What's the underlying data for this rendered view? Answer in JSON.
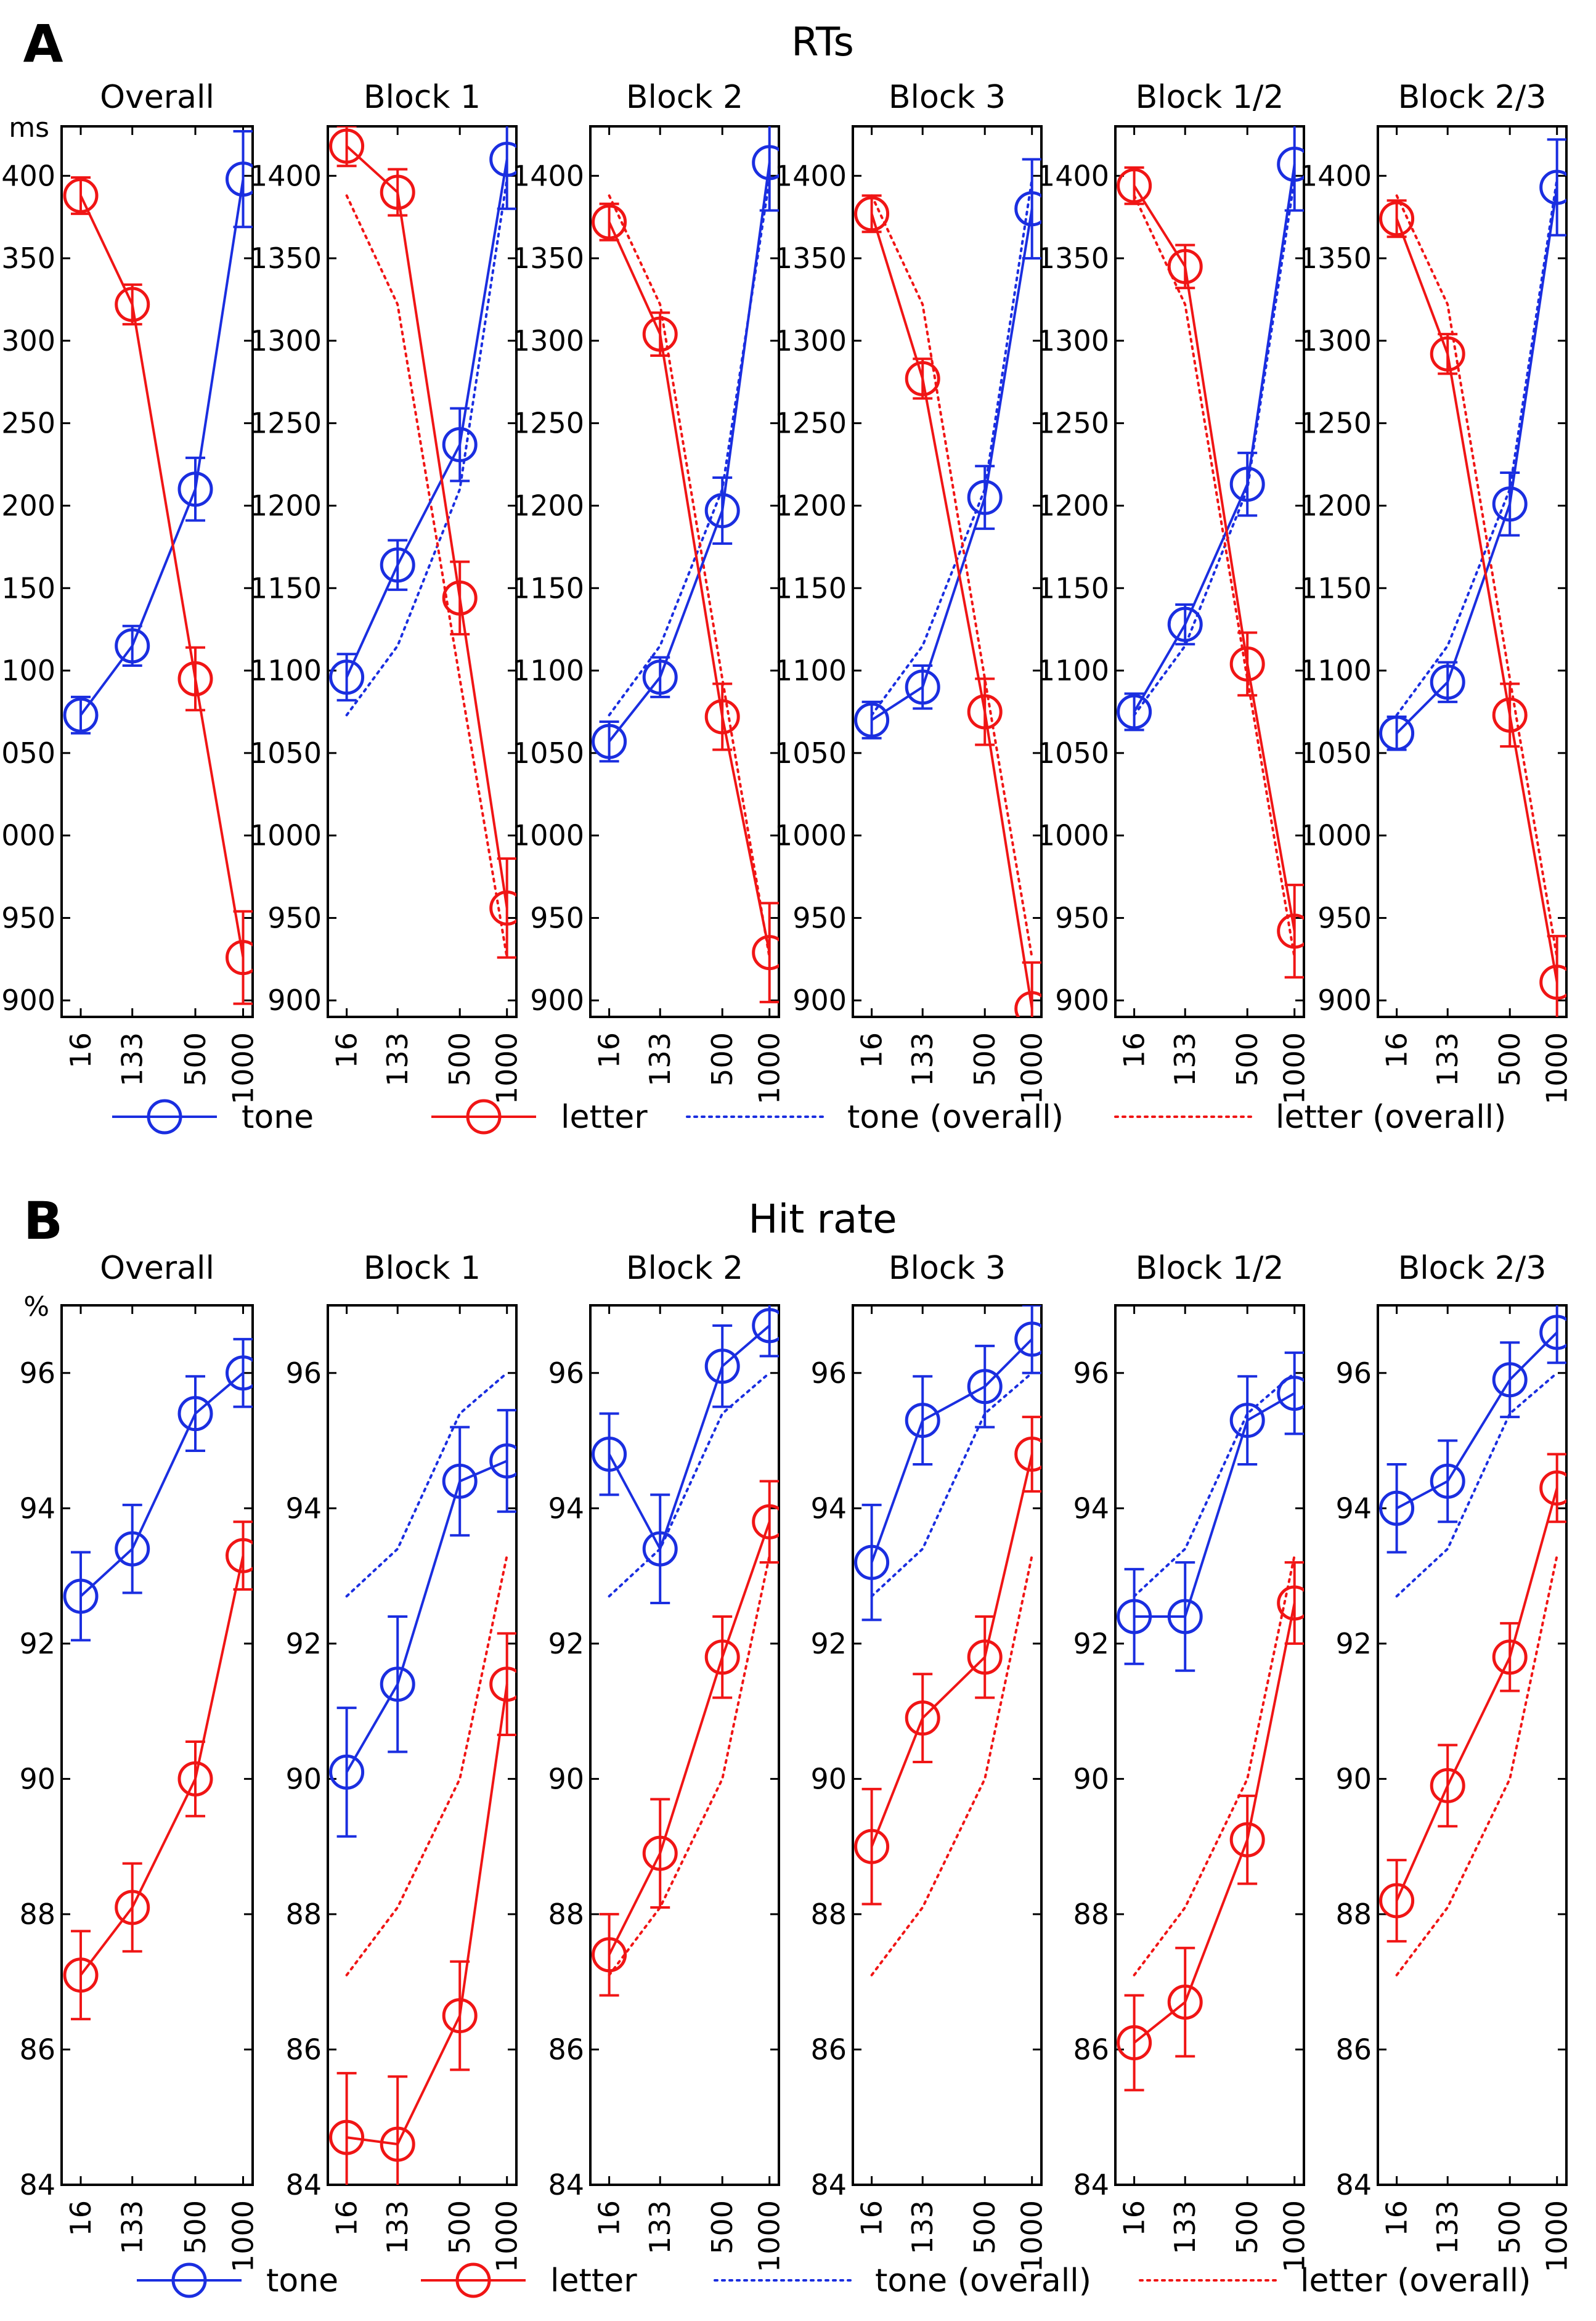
{
  "colors": {
    "tone": "#1a2ee0",
    "letter": "#f01515"
  },
  "legend": [
    {
      "key": "tone",
      "label": "tone",
      "style": "marker"
    },
    {
      "key": "letter",
      "label": "letter",
      "style": "marker"
    },
    {
      "key": "tone_overall",
      "label": "tone (overall)",
      "style": "dotted",
      "color_key": "tone"
    },
    {
      "key": "letter_overall",
      "label": "letter (overall)",
      "style": "dotted",
      "color_key": "letter"
    }
  ],
  "chart_data": [
    {
      "id": "A",
      "type": "line",
      "letter": "A",
      "title": "RTs",
      "unit": "ms",
      "ylim": [
        890,
        1430
      ],
      "yticks": [
        900,
        950,
        1000,
        1050,
        1100,
        1150,
        1200,
        1250,
        1300,
        1350,
        1400
      ],
      "categories": [
        "16",
        "133",
        "500",
        "1000"
      ],
      "overall": {
        "tone": [
          1073,
          1115,
          1210,
          1398
        ],
        "letter": [
          1388,
          1322,
          1095,
          926
        ]
      },
      "panels": [
        {
          "title": "Overall",
          "show_overall": false,
          "series": [
            {
              "name": "tone",
              "values": [
                1073,
                1115,
                1210,
                1398
              ],
              "errors": [
                11,
                12,
                19,
                29
              ]
            },
            {
              "name": "letter",
              "values": [
                1388,
                1322,
                1095,
                926
              ],
              "errors": [
                11,
                12,
                19,
                28
              ]
            }
          ]
        },
        {
          "title": "Block 1",
          "show_overall": true,
          "series": [
            {
              "name": "tone",
              "values": [
                1096,
                1164,
                1237,
                1410
              ],
              "errors": [
                14,
                15,
                22,
                30
              ]
            },
            {
              "name": "letter",
              "values": [
                1418,
                1390,
                1144,
                956
              ],
              "errors": [
                12,
                14,
                22,
                30
              ]
            }
          ]
        },
        {
          "title": "Block 2",
          "show_overall": true,
          "series": [
            {
              "name": "tone",
              "values": [
                1057,
                1096,
                1197,
                1408
              ],
              "errors": [
                12,
                12,
                20,
                29
              ]
            },
            {
              "name": "letter",
              "values": [
                1372,
                1304,
                1072,
                929
              ],
              "errors": [
                11,
                13,
                20,
                30
              ]
            }
          ]
        },
        {
          "title": "Block 3",
          "show_overall": true,
          "series": [
            {
              "name": "tone",
              "values": [
                1070,
                1090,
                1205,
                1380
              ],
              "errors": [
                11,
                13,
                19,
                30
              ]
            },
            {
              "name": "letter",
              "values": [
                1377,
                1277,
                1075,
                895
              ],
              "errors": [
                11,
                12,
                20,
                28
              ]
            }
          ]
        },
        {
          "title": "Block 1/2",
          "show_overall": true,
          "series": [
            {
              "name": "tone",
              "values": [
                1075,
                1128,
                1213,
                1407
              ],
              "errors": [
                11,
                12,
                19,
                28
              ]
            },
            {
              "name": "letter",
              "values": [
                1394,
                1345,
                1104,
                942
              ],
              "errors": [
                11,
                13,
                19,
                28
              ]
            }
          ]
        },
        {
          "title": "Block 2/3",
          "show_overall": true,
          "series": [
            {
              "name": "tone",
              "values": [
                1062,
                1093,
                1201,
                1393
              ],
              "errors": [
                10,
                12,
                19,
                29
              ]
            },
            {
              "name": "letter",
              "values": [
                1374,
                1292,
                1073,
                911
              ],
              "errors": [
                11,
                12,
                19,
                28
              ]
            }
          ]
        }
      ]
    },
    {
      "id": "B",
      "type": "line",
      "letter": "B",
      "title": "Hit rate",
      "unit": "%",
      "ylim": [
        84,
        97
      ],
      "yticks": [
        84,
        86,
        88,
        90,
        92,
        94,
        96
      ],
      "categories": [
        "16",
        "133",
        "500",
        "1000"
      ],
      "overall": {
        "tone": [
          92.7,
          93.4,
          95.4,
          96.0
        ],
        "letter": [
          87.1,
          88.1,
          90.0,
          93.3
        ]
      },
      "panels": [
        {
          "title": "Overall",
          "show_overall": false,
          "series": [
            {
              "name": "tone",
              "values": [
                92.7,
                93.4,
                95.4,
                96.0
              ],
              "errors": [
                0.65,
                0.65,
                0.55,
                0.5
              ]
            },
            {
              "name": "letter",
              "values": [
                87.1,
                88.1,
                90.0,
                93.3
              ],
              "errors": [
                0.65,
                0.65,
                0.55,
                0.5
              ]
            }
          ]
        },
        {
          "title": "Block 1",
          "show_overall": true,
          "series": [
            {
              "name": "tone",
              "values": [
                90.1,
                91.4,
                94.4,
                94.7
              ],
              "errors": [
                0.95,
                1.0,
                0.8,
                0.75
              ]
            },
            {
              "name": "letter",
              "values": [
                84.7,
                84.6,
                86.5,
                91.4
              ],
              "errors": [
                0.95,
                1.0,
                0.8,
                0.75
              ]
            }
          ]
        },
        {
          "title": "Block 2",
          "show_overall": true,
          "series": [
            {
              "name": "tone",
              "values": [
                94.8,
                93.4,
                96.1,
                96.7
              ],
              "errors": [
                0.6,
                0.8,
                0.6,
                0.45
              ]
            },
            {
              "name": "letter",
              "values": [
                87.4,
                88.9,
                91.8,
                93.8
              ],
              "errors": [
                0.6,
                0.8,
                0.6,
                0.6
              ]
            }
          ]
        },
        {
          "title": "Block 3",
          "show_overall": true,
          "series": [
            {
              "name": "tone",
              "values": [
                93.2,
                95.3,
                95.8,
                96.5
              ],
              "errors": [
                0.85,
                0.65,
                0.6,
                0.5
              ]
            },
            {
              "name": "letter",
              "values": [
                89.0,
                90.9,
                91.8,
                94.8
              ],
              "errors": [
                0.85,
                0.65,
                0.6,
                0.55
              ]
            }
          ]
        },
        {
          "title": "Block 1/2",
          "show_overall": true,
          "series": [
            {
              "name": "tone",
              "values": [
                92.4,
                92.4,
                95.3,
                95.7
              ],
              "errors": [
                0.7,
                0.8,
                0.65,
                0.6
              ]
            },
            {
              "name": "letter",
              "values": [
                86.1,
                86.7,
                89.1,
                92.6
              ],
              "errors": [
                0.7,
                0.8,
                0.65,
                0.6
              ]
            }
          ]
        },
        {
          "title": "Block 2/3",
          "show_overall": true,
          "series": [
            {
              "name": "tone",
              "values": [
                94.0,
                94.4,
                95.9,
                96.6
              ],
              "errors": [
                0.65,
                0.6,
                0.55,
                0.45
              ]
            },
            {
              "name": "letter",
              "values": [
                88.2,
                89.9,
                91.8,
                94.3
              ],
              "errors": [
                0.6,
                0.6,
                0.5,
                0.5
              ]
            }
          ]
        }
      ]
    }
  ]
}
